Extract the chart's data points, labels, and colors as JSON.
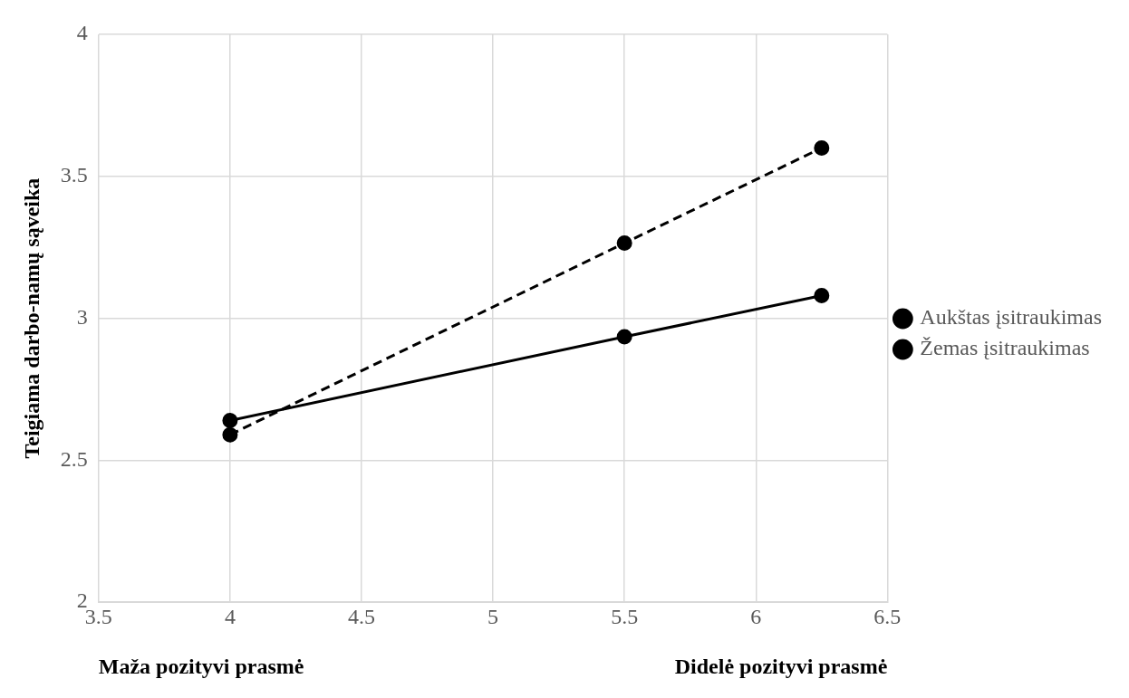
{
  "chart_data": {
    "type": "line",
    "ylabel": "Teigiama darbo-namų sąveika",
    "xlim": [
      3.5,
      6.5
    ],
    "xticks": [
      3.5,
      4,
      4.5,
      5,
      5.5,
      6,
      6.5
    ],
    "ylim": [
      2,
      4
    ],
    "yticks": [
      2,
      2.5,
      3,
      3.5,
      4
    ],
    "grid": true,
    "legend": "right",
    "marker": "circle",
    "annotations": [
      "Maža pozityvi prasmė",
      "Didelė pozityvi prasmė"
    ],
    "series": [
      {
        "name": "Aukštas įsitraukimas",
        "color": "#000000",
        "line_style": "dashed",
        "x": [
          4,
          5.5,
          6.25
        ],
        "values": [
          2.59,
          3.265,
          3.6
        ]
      },
      {
        "name": "Žemas įsitraukimas",
        "color": "#000000",
        "line_style": "solid",
        "x": [
          4,
          5.5,
          6.25
        ],
        "values": [
          2.64,
          2.935,
          3.08
        ]
      }
    ]
  }
}
